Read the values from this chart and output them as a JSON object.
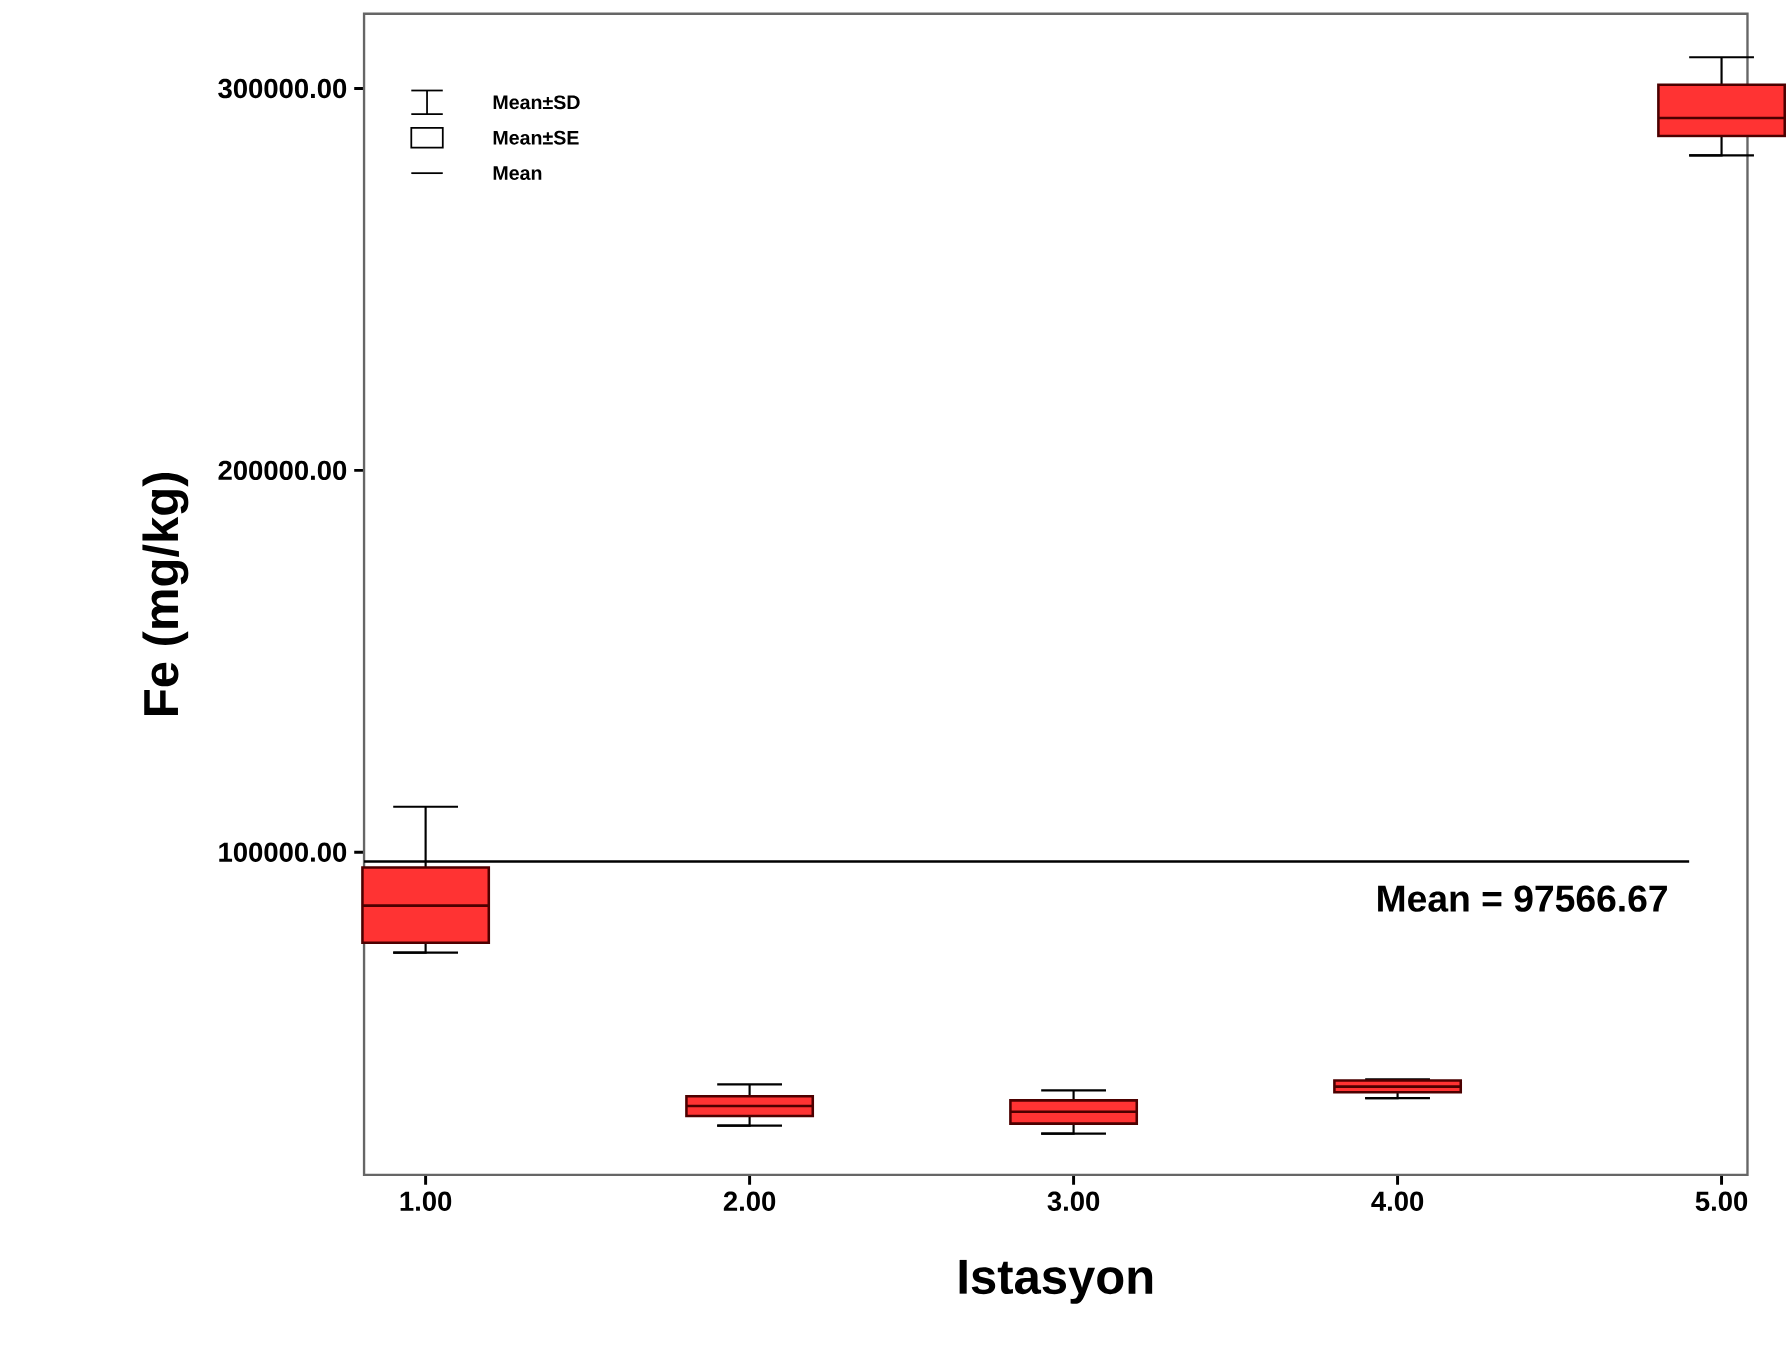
{
  "chart_data": {
    "type": "box",
    "xlabel": "Istasyon",
    "ylabel": "Fe (mg/kg)",
    "categories": [
      "1.00",
      "2.00",
      "3.00",
      "4.00",
      "5.00"
    ],
    "boxes": [
      {
        "low": 73700,
        "q1": 76300,
        "median": 86000,
        "q3": 96000,
        "high": 111900
      },
      {
        "low": 28400,
        "q1": 30900,
        "median": 33500,
        "q3": 36100,
        "high": 39200
      },
      {
        "low": 26300,
        "q1": 28900,
        "median": 32000,
        "q3": 35000,
        "high": 37600
      },
      {
        "low": 35600,
        "q1": 37100,
        "median": 38600,
        "q3": 40200,
        "high": 40500
      },
      {
        "low": 282500,
        "q1": 287600,
        "median": 292300,
        "q3": 301000,
        "high": 308200
      }
    ],
    "color": "#ff3333",
    "ylim": [
      15500,
      319600
    ],
    "yticks": [
      {
        "value": 100000,
        "label": "100000.00"
      },
      {
        "value": 200000,
        "label": "200000.00"
      },
      {
        "value": 300000,
        "label": "300000.00"
      }
    ],
    "ref_lines": [
      {
        "axis": "y",
        "value": 97566.67,
        "label": "Mean = 97566.67"
      }
    ],
    "annotations": [
      "Mean±SD",
      "Mean±SE",
      "Mean"
    ]
  }
}
